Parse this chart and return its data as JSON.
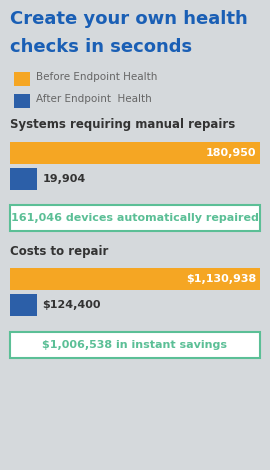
{
  "title_line1": "Create your own health",
  "title_line2": "checks in seconds",
  "title_color": "#1a5fb5",
  "background_color": "#d5d9dc",
  "legend": [
    {
      "label": "Before Endpoint Health",
      "color": "#f5a623"
    },
    {
      "label": "After Endpoint  Health",
      "color": "#2c5fa8"
    }
  ],
  "section1_title": "Systems requiring manual repairs",
  "bar1_before": 180950,
  "bar1_after": 19904,
  "bar1_before_label": "180,950",
  "bar1_after_label": "19,904",
  "callout1": "161,046 devices automatically repaired",
  "section2_title": "Costs to repair",
  "bar2_before": 1130938,
  "bar2_after": 124400,
  "bar2_before_label": "$1,130,938",
  "bar2_after_label": "$124,400",
  "callout2": "$1,006,538 in instant savings",
  "orange": "#f5a623",
  "blue": "#2c5fa8",
  "green": "#5bbf96",
  "dark_text": "#333333",
  "callout_bg": "#ffffff"
}
